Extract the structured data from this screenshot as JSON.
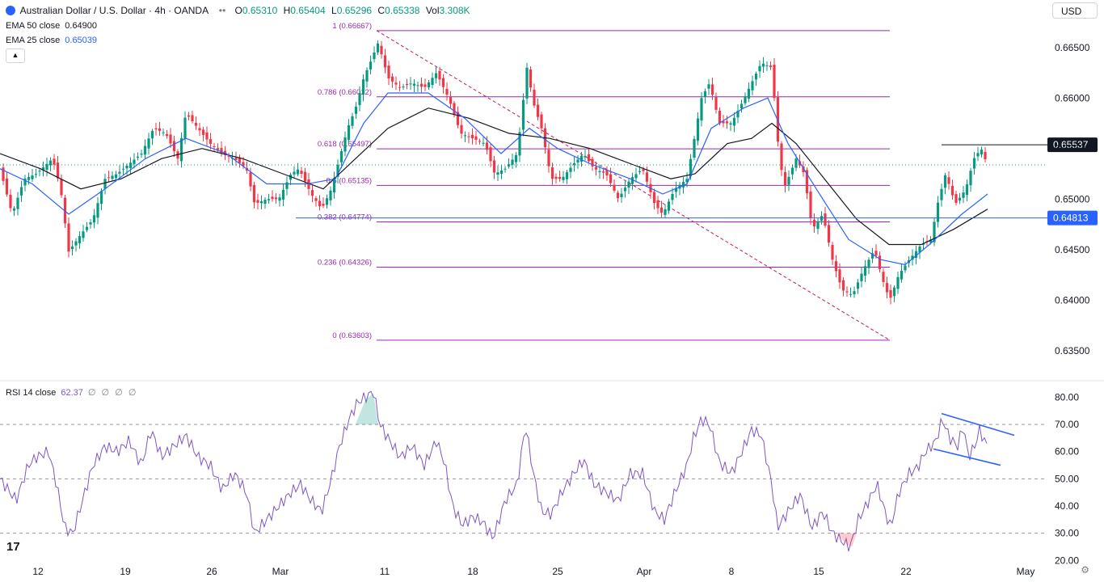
{
  "header": {
    "title": "Australian Dollar / U.S. Dollar · 4h · OANDA",
    "ohlc": [
      {
        "k": "O",
        "v": "0.65310"
      },
      {
        "k": "H",
        "v": "0.65404"
      },
      {
        "k": "L",
        "v": "0.65296"
      },
      {
        "k": "C",
        "v": "0.65338"
      },
      {
        "k": "Vol",
        "v": "3.308K"
      }
    ],
    "ema50_label": "EMA 50 close",
    "ema50_value": "0.64900",
    "ema25_label": "EMA 25 close",
    "ema25_value": "0.65039",
    "currency": "USD"
  },
  "rsi_header": {
    "label": "RSI 14 close",
    "value": "62.37",
    "extras": "∅ ∅ ∅ ∅"
  },
  "colors": {
    "up": "#089981",
    "down": "#f23645",
    "fib": "#9c27b0",
    "ema25": "#2962ff",
    "ema50": "#131722",
    "rsi": "#7e57c2",
    "blue_level": "#2962ff"
  },
  "chart_data": [
    {
      "type": "candlestick",
      "title": "Australian Dollar / U.S. Dollar · 4h · OANDA",
      "ylim": [
        0.6325,
        0.6685
      ],
      "y_ticks": [
        "0.66500",
        "0.66000",
        "0.65500",
        "0.65000",
        "0.64500",
        "0.64000",
        "0.63500"
      ],
      "x_ticks": [
        "12",
        "19",
        "26",
        "Mar",
        "11",
        "18",
        "25",
        "Apr",
        "8",
        "15",
        "22",
        "May"
      ],
      "price_path": [
        [
          0,
          0.653
        ],
        [
          15,
          0.6485
        ],
        [
          30,
          0.652
        ],
        [
          45,
          0.6525
        ],
        [
          65,
          0.654
        ],
        [
          75,
          0.651
        ],
        [
          85,
          0.6448
        ],
        [
          100,
          0.6465
        ],
        [
          115,
          0.648
        ],
        [
          130,
          0.652
        ],
        [
          145,
          0.6525
        ],
        [
          160,
          0.6535
        ],
        [
          175,
          0.6545
        ],
        [
          190,
          0.657
        ],
        [
          205,
          0.6565
        ],
        [
          220,
          0.654
        ],
        [
          230,
          0.6585
        ],
        [
          245,
          0.657
        ],
        [
          260,
          0.6555
        ],
        [
          275,
          0.6545
        ],
        [
          290,
          0.654
        ],
        [
          305,
          0.653
        ],
        [
          315,
          0.6495
        ],
        [
          330,
          0.65
        ],
        [
          345,
          0.65
        ],
        [
          360,
          0.6525
        ],
        [
          370,
          0.653
        ],
        [
          385,
          0.6505
        ],
        [
          398,
          0.649
        ],
        [
          410,
          0.651
        ],
        [
          420,
          0.654
        ],
        [
          430,
          0.657
        ],
        [
          440,
          0.659
        ],
        [
          450,
          0.662
        ],
        [
          458,
          0.6635
        ],
        [
          468,
          0.6655
        ],
        [
          480,
          0.662
        ],
        [
          495,
          0.661
        ],
        [
          510,
          0.6615
        ],
        [
          525,
          0.661
        ],
        [
          540,
          0.6625
        ],
        [
          555,
          0.66
        ],
        [
          570,
          0.6565
        ],
        [
          585,
          0.656
        ],
        [
          600,
          0.6555
        ],
        [
          612,
          0.6525
        ],
        [
          625,
          0.653
        ],
        [
          640,
          0.6545
        ],
        [
          652,
          0.663
        ],
        [
          660,
          0.6595
        ],
        [
          670,
          0.657
        ],
        [
          682,
          0.652
        ],
        [
          695,
          0.652
        ],
        [
          710,
          0.6535
        ],
        [
          722,
          0.6545
        ],
        [
          735,
          0.653
        ],
        [
          750,
          0.6525
        ],
        [
          765,
          0.65
        ],
        [
          780,
          0.652
        ],
        [
          795,
          0.653
        ],
        [
          810,
          0.6495
        ],
        [
          820,
          0.6485
        ],
        [
          835,
          0.651
        ],
        [
          850,
          0.652
        ],
        [
          858,
          0.6555
        ],
        [
          868,
          0.66
        ],
        [
          878,
          0.6615
        ],
        [
          890,
          0.6575
        ],
        [
          905,
          0.6575
        ],
        [
          918,
          0.6595
        ],
        [
          930,
          0.6615
        ],
        [
          942,
          0.6635
        ],
        [
          955,
          0.663
        ],
        [
          962,
          0.656
        ],
        [
          970,
          0.651
        ],
        [
          985,
          0.654
        ],
        [
          995,
          0.6525
        ],
        [
          1005,
          0.647
        ],
        [
          1018,
          0.6485
        ],
        [
          1030,
          0.644
        ],
        [
          1042,
          0.641
        ],
        [
          1055,
          0.6405
        ],
        [
          1068,
          0.643
        ],
        [
          1082,
          0.645
        ],
        [
          1092,
          0.642
        ],
        [
          1101,
          0.64
        ],
        [
          1112,
          0.6425
        ],
        [
          1125,
          0.644
        ],
        [
          1140,
          0.6455
        ],
        [
          1152,
          0.646
        ],
        [
          1160,
          0.6495
        ],
        [
          1170,
          0.6525
        ],
        [
          1182,
          0.6495
        ],
        [
          1195,
          0.651
        ],
        [
          1205,
          0.654
        ],
        [
          1214,
          0.655
        ],
        [
          1222,
          0.6533
        ]
      ],
      "ema25": [
        [
          0,
          0.653
        ],
        [
          40,
          0.6515
        ],
        [
          85,
          0.6485
        ],
        [
          130,
          0.651
        ],
        [
          180,
          0.654
        ],
        [
          230,
          0.656
        ],
        [
          280,
          0.6545
        ],
        [
          330,
          0.6515
        ],
        [
          380,
          0.6515
        ],
        [
          415,
          0.652
        ],
        [
          450,
          0.6575
        ],
        [
          480,
          0.6605
        ],
        [
          530,
          0.6605
        ],
        [
          575,
          0.658
        ],
        [
          620,
          0.6545
        ],
        [
          655,
          0.657
        ],
        [
          690,
          0.655
        ],
        [
          730,
          0.6535
        ],
        [
          780,
          0.652
        ],
        [
          820,
          0.6505
        ],
        [
          850,
          0.6515
        ],
        [
          880,
          0.657
        ],
        [
          920,
          0.659
        ],
        [
          950,
          0.66
        ],
        [
          975,
          0.6555
        ],
        [
          1010,
          0.651
        ],
        [
          1050,
          0.646
        ],
        [
          1090,
          0.644
        ],
        [
          1120,
          0.6435
        ],
        [
          1150,
          0.6455
        ],
        [
          1190,
          0.6485
        ],
        [
          1222,
          0.6505
        ]
      ],
      "ema50": [
        [
          0,
          0.6545
        ],
        [
          50,
          0.653
        ],
        [
          100,
          0.651
        ],
        [
          150,
          0.652
        ],
        [
          200,
          0.654
        ],
        [
          250,
          0.655
        ],
        [
          300,
          0.654
        ],
        [
          350,
          0.6525
        ],
        [
          400,
          0.651
        ],
        [
          440,
          0.654
        ],
        [
          480,
          0.657
        ],
        [
          530,
          0.659
        ],
        [
          580,
          0.658
        ],
        [
          630,
          0.6565
        ],
        [
          680,
          0.656
        ],
        [
          730,
          0.655
        ],
        [
          780,
          0.6535
        ],
        [
          830,
          0.652
        ],
        [
          860,
          0.6525
        ],
        [
          900,
          0.6555
        ],
        [
          930,
          0.656
        ],
        [
          955,
          0.6575
        ],
        [
          985,
          0.6555
        ],
        [
          1020,
          0.652
        ],
        [
          1060,
          0.648
        ],
        [
          1100,
          0.6455
        ],
        [
          1140,
          0.6455
        ],
        [
          1180,
          0.647
        ],
        [
          1222,
          0.649
        ]
      ],
      "fib_levels": [
        {
          "label": "1 (0.66667)",
          "price": 0.66667
        },
        {
          "label": "0.786 (0.66012)",
          "price": 0.66012
        },
        {
          "label": "0.618 (0.65497)",
          "price": 0.65497
        },
        {
          "label": "0.5 (0.65135)",
          "price": 0.65135
        },
        {
          "label": "0.382 (0.64774)",
          "price": 0.64774
        },
        {
          "label": "0.236 (0.64326)",
          "price": 0.64326
        },
        {
          "label": "0 (0.63603)",
          "price": 0.63603
        }
      ],
      "resistance_level": "0.65537",
      "support_level": "0.64813",
      "last_price": 0.65338
    },
    {
      "type": "line",
      "title": "RSI 14 close",
      "ylim": [
        18,
        84
      ],
      "y_ticks": [
        "80.00",
        "70.00",
        "60.00",
        "50.00",
        "40.00",
        "30.00",
        "20.00"
      ],
      "bands": [
        70,
        50,
        30
      ],
      "rsi_path": [
        [
          0,
          50
        ],
        [
          20,
          42
        ],
        [
          35,
          55
        ],
        [
          45,
          58
        ],
        [
          60,
          60
        ],
        [
          70,
          48
        ],
        [
          80,
          32
        ],
        [
          90,
          30
        ],
        [
          100,
          40
        ],
        [
          115,
          55
        ],
        [
          130,
          62
        ],
        [
          145,
          60
        ],
        [
          160,
          64
        ],
        [
          175,
          55
        ],
        [
          187,
          68
        ],
        [
          200,
          58
        ],
        [
          215,
          62
        ],
        [
          230,
          66
        ],
        [
          245,
          58
        ],
        [
          260,
          55
        ],
        [
          275,
          46
        ],
        [
          290,
          52
        ],
        [
          305,
          45
        ],
        [
          315,
          30
        ],
        [
          330,
          35
        ],
        [
          345,
          40
        ],
        [
          360,
          45
        ],
        [
          372,
          48
        ],
        [
          385,
          42
        ],
        [
          398,
          38
        ],
        [
          410,
          50
        ],
        [
          420,
          62
        ],
        [
          432,
          72
        ],
        [
          442,
          78
        ],
        [
          452,
          80
        ],
        [
          462,
          82
        ],
        [
          470,
          70
        ],
        [
          480,
          65
        ],
        [
          495,
          58
        ],
        [
          510,
          62
        ],
        [
          525,
          55
        ],
        [
          540,
          64
        ],
        [
          550,
          56
        ],
        [
          560,
          40
        ],
        [
          572,
          33
        ],
        [
          585,
          36
        ],
        [
          598,
          34
        ],
        [
          610,
          28
        ],
        [
          625,
          42
        ],
        [
          640,
          48
        ],
        [
          650,
          70
        ],
        [
          660,
          52
        ],
        [
          670,
          38
        ],
        [
          682,
          37
        ],
        [
          695,
          45
        ],
        [
          710,
          52
        ],
        [
          722,
          57
        ],
        [
          735,
          48
        ],
        [
          750,
          45
        ],
        [
          765,
          42
        ],
        [
          780,
          52
        ],
        [
          795,
          52
        ],
        [
          810,
          38
        ],
        [
          822,
          35
        ],
        [
          835,
          45
        ],
        [
          850,
          55
        ],
        [
          858,
          65
        ],
        [
          868,
          72
        ],
        [
          878,
          70
        ],
        [
          890,
          56
        ],
        [
          905,
          52
        ],
        [
          918,
          60
        ],
        [
          930,
          68
        ],
        [
          942,
          66
        ],
        [
          955,
          48
        ],
        [
          962,
          32
        ],
        [
          975,
          38
        ],
        [
          990,
          44
        ],
        [
          1005,
          32
        ],
        [
          1018,
          38
        ],
        [
          1030,
          30
        ],
        [
          1042,
          27
        ],
        [
          1052,
          25
        ],
        [
          1062,
          35
        ],
        [
          1075,
          42
        ],
        [
          1085,
          48
        ],
        [
          1095,
          38
        ],
        [
          1102,
          32
        ],
        [
          1112,
          45
        ],
        [
          1125,
          52
        ],
        [
          1135,
          54
        ],
        [
          1145,
          60
        ],
        [
          1152,
          62
        ],
        [
          1158,
          64
        ],
        [
          1166,
          72
        ],
        [
          1175,
          65
        ],
        [
          1185,
          62
        ],
        [
          1192,
          70
        ],
        [
          1198,
          58
        ],
        [
          1206,
          62
        ],
        [
          1212,
          68
        ],
        [
          1218,
          64
        ],
        [
          1222,
          62
        ]
      ],
      "channel_upper": [
        [
          1165,
          74
        ],
        [
          1255,
          66
        ]
      ],
      "channel_lower": [
        [
          1155,
          61
        ],
        [
          1238,
          55
        ]
      ]
    }
  ]
}
